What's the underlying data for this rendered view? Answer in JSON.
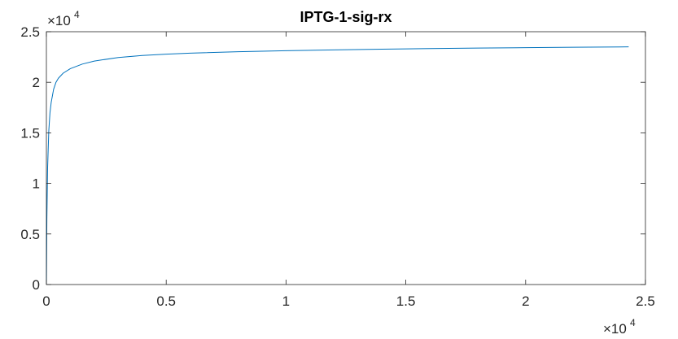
{
  "chart_data": {
    "type": "line",
    "title": "IPTG-1-sig-rx",
    "xlabel": "",
    "ylabel": "",
    "xlim": [
      0,
      25000
    ],
    "ylim": [
      0,
      25000
    ],
    "x_ticks": [
      0,
      5000,
      10000,
      15000,
      20000,
      25000
    ],
    "x_tick_labels": [
      "0",
      "0.5",
      "1",
      "1.5",
      "2",
      "2.5"
    ],
    "y_ticks": [
      0,
      5000,
      10000,
      15000,
      20000,
      25000
    ],
    "y_tick_labels": [
      "0",
      "0.5",
      "1",
      "1.5",
      "2",
      "2.5"
    ],
    "x_exponent_label": {
      "base": "×10",
      "power": "4"
    },
    "y_exponent_label": {
      "base": "×10",
      "power": "4"
    },
    "grid": false,
    "box": true,
    "series": [
      {
        "color": "#0072BD",
        "x": [
          0,
          20,
          50,
          100,
          150,
          200,
          300,
          400,
          500,
          700,
          1000,
          1500,
          2000,
          3000,
          4000,
          5000,
          6000,
          8000,
          10000,
          12000,
          14000,
          16000,
          18000,
          20000,
          22000,
          24300
        ],
        "y": [
          0,
          6500,
          11500,
          15200,
          17000,
          18000,
          19300,
          20000,
          20400,
          20900,
          21350,
          21800,
          22100,
          22450,
          22650,
          22780,
          22880,
          23020,
          23120,
          23200,
          23270,
          23330,
          23380,
          23420,
          23460,
          23500
        ]
      }
    ]
  }
}
